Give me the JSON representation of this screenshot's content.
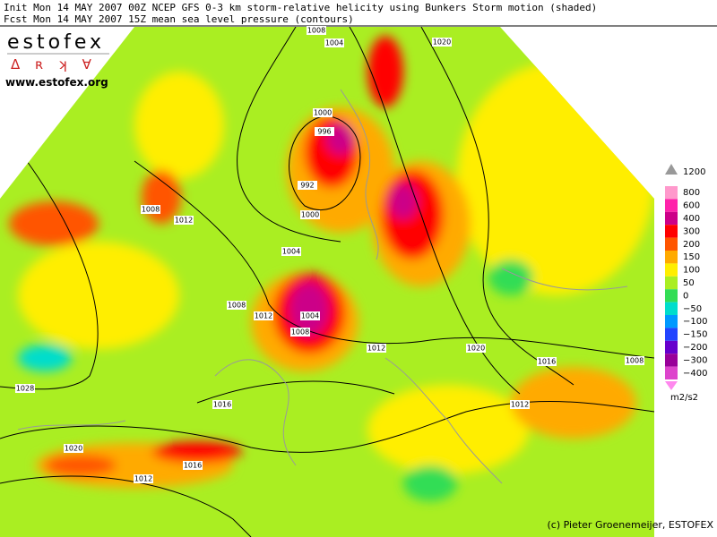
{
  "header": {
    "line1": "Init  Mon 14 MAY 2007 00Z  NCEP GFS 0-3 km storm-relative helicity using Bunkers Storm motion (shaded)",
    "line2": "Fcst Mon 14 MAY 2007 15Z  mean sea level pressure (contours)"
  },
  "logo": {
    "name": "estofex",
    "symbols": "Δ ʀ ʞ ∀",
    "url": "www.estofex.org"
  },
  "legend": {
    "top": "1200",
    "items": [
      {
        "label": "800",
        "color": "#ff99cc"
      },
      {
        "label": "600",
        "color": "#ff22aa"
      },
      {
        "label": "400",
        "color": "#cc0088"
      },
      {
        "label": "300",
        "color": "#ff0000"
      },
      {
        "label": "200",
        "color": "#ff5500"
      },
      {
        "label": "150",
        "color": "#ffaa00"
      },
      {
        "label": "100",
        "color": "#ffee00"
      },
      {
        "label": "50",
        "color": "#aaee22"
      },
      {
        "label": "0",
        "color": "#33dd55"
      },
      {
        "label": "−50",
        "color": "#00ddcc"
      },
      {
        "label": "−100",
        "color": "#0099ff"
      },
      {
        "label": "−150",
        "color": "#2244ff"
      },
      {
        "label": "−200",
        "color": "#6600cc"
      },
      {
        "label": "−300",
        "color": "#990099"
      },
      {
        "label": "−400",
        "color": "#dd44cc"
      }
    ],
    "unit": "m2/s2"
  },
  "contours": [
    "1008",
    "1004",
    "1020",
    "1000",
    "996",
    "992",
    "1008",
    "1012",
    "1000",
    "1004",
    "1008",
    "1012",
    "1004",
    "1008",
    "1012",
    "1020",
    "1016",
    "1008",
    "1028",
    "1016",
    "1012",
    "1020",
    "1016",
    "1012"
  ],
  "credit": "(c) Pieter Groenemeijer, ESTOFEX"
}
